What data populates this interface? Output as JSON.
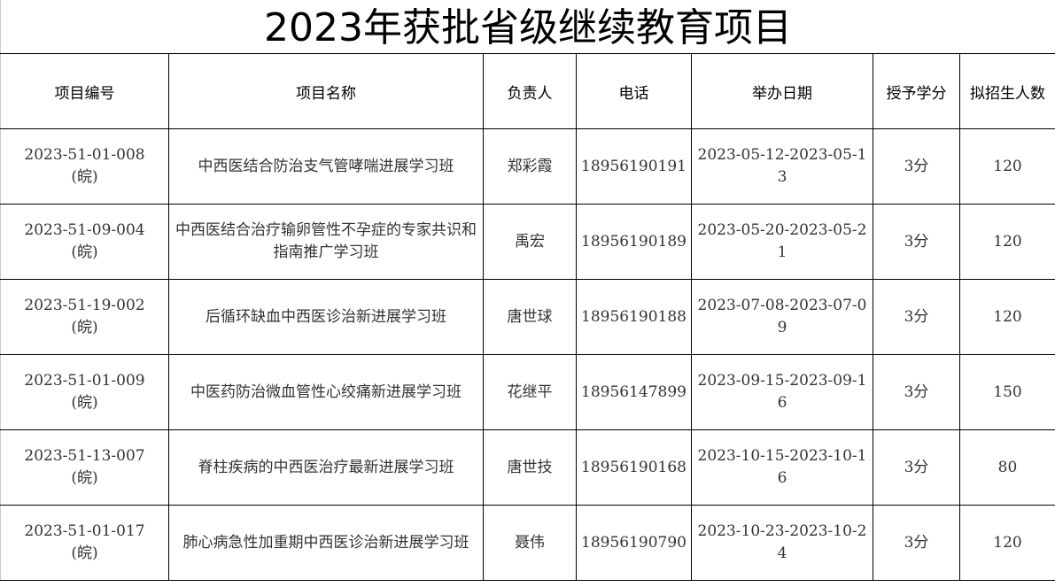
{
  "title": "2023年获批省级继续教育项目",
  "headers": [
    "项目编号",
    "项目名称",
    "负责人",
    "电话",
    "举办日期",
    "授予学分",
    "拟招生人数"
  ],
  "rows": [
    {
      "code": "2023-51-01-008",
      "region": "(皖)",
      "name": "中西医结合防治支气管哮喘进展学习班",
      "leader": "郑彩霞",
      "phone": "18956190191",
      "date": "2023-05-12-2023-05-13",
      "credit": "3分",
      "enroll": "120"
    },
    {
      "code": "2023-51-09-004",
      "region": "(皖)",
      "name": "中西医结合治疗输卵管性不孕症的专家共识和指南推广学习班",
      "leader": "禹宏",
      "phone": "18956190189",
      "date": "2023-05-20-2023-05-21",
      "credit": "3分",
      "enroll": "120"
    },
    {
      "code": "2023-51-19-002",
      "region": "(皖)",
      "name": "后循环缺血中西医诊治新进展学习班",
      "leader": "唐世球",
      "phone": "18956190188",
      "date": "2023-07-08-2023-07-09",
      "credit": "3分",
      "enroll": "120"
    },
    {
      "code": "2023-51-01-009",
      "region": "(皖)",
      "name": "中医药防治微血管性心绞痛新进展学习班",
      "leader": "花继平",
      "phone": "18956147899",
      "date": "2023-09-15-2023-09-16",
      "credit": "3分",
      "enroll": "150"
    },
    {
      "code": "2023-51-13-007",
      "region": "(皖)",
      "name": "脊柱疾病的中西医治疗最新进展学习班",
      "leader": "唐世技",
      "phone": "18956190168",
      "date": "2023-10-15-2023-10-16",
      "credit": "3分",
      "enroll": "80"
    },
    {
      "code": "2023-51-01-017",
      "region": "(皖)",
      "name": "肺心病急性加重期中西医诊治新进展学习班",
      "leader": "聂伟",
      "phone": "18956190790",
      "date": "2023-10-23-2023-10-24",
      "credit": "3分",
      "enroll": "120"
    }
  ]
}
